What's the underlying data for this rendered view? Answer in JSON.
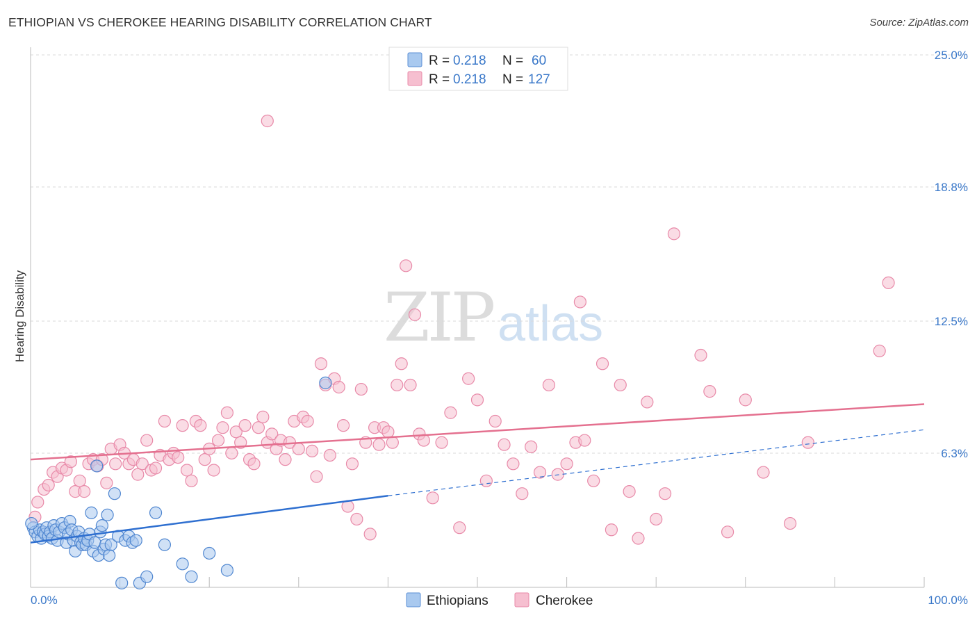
{
  "header": {
    "title": "ETHIOPIAN VS CHEROKEE HEARING DISABILITY CORRELATION CHART",
    "source": "Source: ZipAtlas.com"
  },
  "watermark": {
    "part1": "ZIP",
    "part2": "atlas"
  },
  "legend": {
    "rows": [
      {
        "r_label": "R = ",
        "r_value": "0.218",
        "n_label": "N = ",
        "n_value": "60",
        "color": "#a9c9ef",
        "stroke": "#5b8fd6"
      },
      {
        "r_label": "R = ",
        "r_value": "0.218",
        "n_label": "N = ",
        "n_value": "127",
        "color": "#f6bfd0",
        "stroke": "#e889a8"
      }
    ]
  },
  "bottom_legend": {
    "items": [
      "Ethiopians",
      "Cherokee"
    ]
  },
  "chart_data": {
    "type": "scatter",
    "title": "ETHIOPIAN VS CHEROKEE HEARING DISABILITY CORRELATION CHART",
    "xlabel": "",
    "ylabel": "Hearing Disability",
    "xlim": [
      0,
      100
    ],
    "ylim": [
      0,
      25
    ],
    "x_tick_labels": [
      "0.0%",
      "100.0%"
    ],
    "y_ticks": [
      6.3,
      12.5,
      18.8,
      25.0
    ],
    "y_tick_labels": [
      "6.3%",
      "12.5%",
      "18.8%",
      "25.0%"
    ],
    "grid": true,
    "series": [
      {
        "name": "Ethiopians",
        "color": "#a9c9ef",
        "stroke": "#4f86d0",
        "trend": {
          "x0": 0,
          "y0": 2.1,
          "x1": 40,
          "y1": 4.3,
          "extend_to": 100,
          "extend_y": 7.4,
          "color": "#2e6fd0"
        },
        "points": [
          [
            0.3,
            2.8
          ],
          [
            0.5,
            2.6
          ],
          [
            0.8,
            2.4
          ],
          [
            1.0,
            2.7
          ],
          [
            1.2,
            2.3
          ],
          [
            1.4,
            2.6
          ],
          [
            1.6,
            2.5
          ],
          [
            1.8,
            2.8
          ],
          [
            2.0,
            2.4
          ],
          [
            2.2,
            2.6
          ],
          [
            2.4,
            2.3
          ],
          [
            2.6,
            2.9
          ],
          [
            2.8,
            2.7
          ],
          [
            3.0,
            2.2
          ],
          [
            3.2,
            2.6
          ],
          [
            3.5,
            3.0
          ],
          [
            3.8,
            2.8
          ],
          [
            4.0,
            2.1
          ],
          [
            4.2,
            2.5
          ],
          [
            4.4,
            3.1
          ],
          [
            4.6,
            2.7
          ],
          [
            4.8,
            2.2
          ],
          [
            5.0,
            1.7
          ],
          [
            5.2,
            2.4
          ],
          [
            5.4,
            2.6
          ],
          [
            5.6,
            2.1
          ],
          [
            5.8,
            2.0
          ],
          [
            6.0,
            2.3
          ],
          [
            6.2,
            2.0
          ],
          [
            6.4,
            2.2
          ],
          [
            6.6,
            2.5
          ],
          [
            6.8,
            3.5
          ],
          [
            7.0,
            1.7
          ],
          [
            7.2,
            2.1
          ],
          [
            7.4,
            5.7
          ],
          [
            7.6,
            1.5
          ],
          [
            7.8,
            2.6
          ],
          [
            8.0,
            2.9
          ],
          [
            8.2,
            1.8
          ],
          [
            8.4,
            2.0
          ],
          [
            8.6,
            3.4
          ],
          [
            8.8,
            1.5
          ],
          [
            9.0,
            2.0
          ],
          [
            9.4,
            4.4
          ],
          [
            9.8,
            2.4
          ],
          [
            10.2,
            0.2
          ],
          [
            10.6,
            2.2
          ],
          [
            11.0,
            2.4
          ],
          [
            11.4,
            2.1
          ],
          [
            11.8,
            2.2
          ],
          [
            12.2,
            0.2
          ],
          [
            13.0,
            0.5
          ],
          [
            14.0,
            3.5
          ],
          [
            15.0,
            2.0
          ],
          [
            17.0,
            1.1
          ],
          [
            18.0,
            0.5
          ],
          [
            20.0,
            1.6
          ],
          [
            22.0,
            0.8
          ],
          [
            33.0,
            9.6
          ],
          [
            0.1,
            3.0
          ]
        ]
      },
      {
        "name": "Cherokee",
        "color": "#f6bfd0",
        "stroke": "#e889a8",
        "trend": {
          "x0": 0,
          "y0": 6.0,
          "x1": 100,
          "y1": 8.6,
          "color": "#e4708f"
        },
        "points": [
          [
            0.5,
            3.3
          ],
          [
            0.8,
            4.0
          ],
          [
            1.5,
            4.6
          ],
          [
            2.0,
            4.8
          ],
          [
            2.5,
            5.4
          ],
          [
            3.0,
            5.2
          ],
          [
            3.5,
            5.6
          ],
          [
            4.0,
            5.5
          ],
          [
            4.5,
            5.9
          ],
          [
            5.0,
            4.5
          ],
          [
            5.5,
            5.0
          ],
          [
            6.0,
            4.5
          ],
          [
            6.5,
            5.8
          ],
          [
            7.0,
            6.0
          ],
          [
            7.5,
            5.7
          ],
          [
            8.0,
            6.0
          ],
          [
            8.5,
            4.9
          ],
          [
            9.0,
            6.5
          ],
          [
            9.5,
            5.8
          ],
          [
            10.0,
            6.7
          ],
          [
            10.5,
            6.3
          ],
          [
            11.0,
            5.8
          ],
          [
            11.5,
            6.0
          ],
          [
            12.0,
            5.3
          ],
          [
            12.5,
            5.8
          ],
          [
            13.0,
            6.9
          ],
          [
            13.5,
            5.5
          ],
          [
            14.0,
            5.6
          ],
          [
            14.5,
            6.2
          ],
          [
            15.0,
            7.8
          ],
          [
            15.5,
            6.0
          ],
          [
            16.0,
            6.3
          ],
          [
            16.5,
            6.1
          ],
          [
            17.0,
            7.6
          ],
          [
            17.5,
            5.5
          ],
          [
            18.0,
            5.0
          ],
          [
            18.5,
            7.8
          ],
          [
            19.0,
            7.6
          ],
          [
            19.5,
            6.0
          ],
          [
            20.0,
            6.5
          ],
          [
            20.5,
            5.5
          ],
          [
            21.0,
            6.9
          ],
          [
            21.5,
            7.5
          ],
          [
            22.0,
            8.2
          ],
          [
            22.5,
            6.3
          ],
          [
            23.0,
            7.3
          ],
          [
            23.5,
            6.8
          ],
          [
            24.0,
            7.6
          ],
          [
            24.5,
            6.0
          ],
          [
            25.0,
            5.8
          ],
          [
            25.5,
            7.5
          ],
          [
            26.0,
            8.0
          ],
          [
            26.5,
            6.8
          ],
          [
            27.0,
            7.2
          ],
          [
            27.5,
            6.5
          ],
          [
            28.0,
            6.9
          ],
          [
            28.5,
            6.0
          ],
          [
            29.0,
            6.8
          ],
          [
            29.5,
            7.8
          ],
          [
            30.0,
            6.5
          ],
          [
            30.5,
            8.0
          ],
          [
            31.0,
            7.8
          ],
          [
            31.5,
            6.4
          ],
          [
            32.0,
            5.2
          ],
          [
            32.5,
            10.5
          ],
          [
            33.0,
            9.5
          ],
          [
            33.5,
            6.2
          ],
          [
            34.0,
            9.8
          ],
          [
            34.5,
            9.4
          ],
          [
            35.0,
            7.6
          ],
          [
            35.5,
            3.8
          ],
          [
            36.0,
            5.8
          ],
          [
            36.5,
            3.2
          ],
          [
            37.0,
            9.3
          ],
          [
            37.5,
            6.8
          ],
          [
            38.0,
            2.5
          ],
          [
            38.5,
            7.5
          ],
          [
            39.0,
            6.7
          ],
          [
            39.5,
            7.5
          ],
          [
            40.0,
            7.3
          ],
          [
            40.5,
            6.8
          ],
          [
            41.0,
            9.5
          ],
          [
            41.5,
            10.5
          ],
          [
            42.0,
            15.1
          ],
          [
            42.5,
            9.5
          ],
          [
            43.0,
            12.8
          ],
          [
            43.5,
            7.2
          ],
          [
            44.0,
            6.9
          ],
          [
            45.0,
            4.2
          ],
          [
            46.0,
            6.8
          ],
          [
            47.0,
            8.2
          ],
          [
            48.0,
            2.8
          ],
          [
            49.0,
            9.8
          ],
          [
            50.0,
            8.8
          ],
          [
            51.0,
            5.0
          ],
          [
            52.0,
            7.8
          ],
          [
            53.0,
            6.7
          ],
          [
            54.0,
            5.8
          ],
          [
            55.0,
            4.4
          ],
          [
            56.0,
            6.6
          ],
          [
            57.0,
            5.4
          ],
          [
            58.0,
            9.5
          ],
          [
            59.0,
            5.3
          ],
          [
            60.0,
            5.8
          ],
          [
            61.0,
            6.8
          ],
          [
            61.5,
            13.4
          ],
          [
            62.0,
            6.9
          ],
          [
            63.0,
            5.0
          ],
          [
            64.0,
            10.5
          ],
          [
            65.0,
            2.7
          ],
          [
            66.0,
            9.5
          ],
          [
            67.0,
            4.5
          ],
          [
            68.0,
            2.3
          ],
          [
            69.0,
            8.7
          ],
          [
            70.0,
            3.2
          ],
          [
            71.0,
            4.4
          ],
          [
            72.0,
            16.6
          ],
          [
            75.0,
            10.9
          ],
          [
            76.0,
            9.2
          ],
          [
            78.0,
            2.6
          ],
          [
            80.0,
            8.8
          ],
          [
            82.0,
            5.4
          ],
          [
            85.0,
            3.0
          ],
          [
            87.0,
            6.8
          ],
          [
            95.0,
            11.1
          ],
          [
            96.0,
            14.3
          ],
          [
            26.5,
            21.9
          ]
        ]
      }
    ]
  }
}
